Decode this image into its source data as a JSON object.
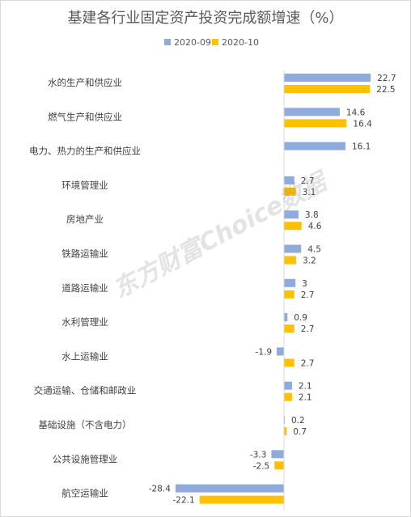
{
  "chart_data": {
    "type": "bar",
    "orientation": "horizontal",
    "title": "基建各行业固定资产投资完成额增速（%）",
    "legend_position": "top",
    "grid": false,
    "watermark": "东方财富Choice数据",
    "categories": [
      "水的生产和供应业",
      "燃气生产和供应业",
      "电力、热力的生产和供应业",
      "环境管理业",
      "房地产业",
      "铁路运输业",
      "道路运输业",
      "水利管理业",
      "水上运输业",
      "交通运输、仓储和邮政业",
      "基础设施（不含电力）",
      "公共设施管理业",
      "航空运输业"
    ],
    "series": [
      {
        "name": "2020-09",
        "color": "#8FAADC",
        "values": [
          22.7,
          14.6,
          16.1,
          2.7,
          3.8,
          4.5,
          3,
          0.9,
          -1.9,
          2.1,
          0.2,
          -3.3,
          -28.4
        ]
      },
      {
        "name": "2020-10",
        "color": "#FFC000",
        "values": [
          22.5,
          16.4,
          null,
          3.1,
          4.6,
          3.2,
          2.7,
          2.7,
          2.7,
          2.1,
          0.7,
          -2.5,
          -22.1
        ]
      }
    ]
  }
}
